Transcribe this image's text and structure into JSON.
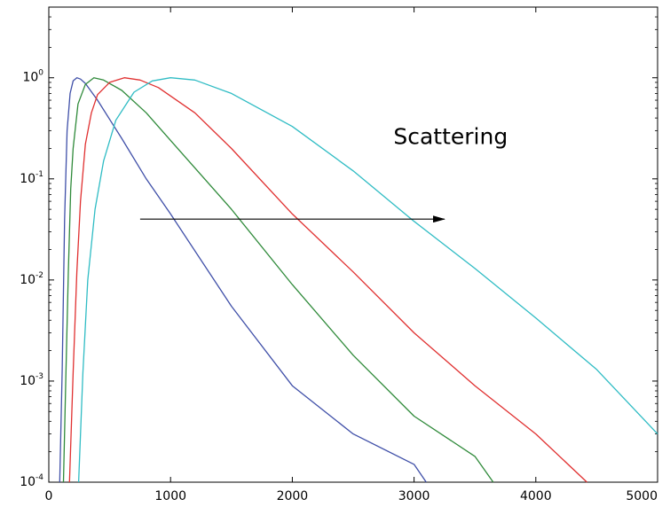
{
  "chart_data": {
    "type": "line",
    "title": "",
    "xlabel": "",
    "ylabel": "",
    "xlim": [
      0,
      5000
    ],
    "ylim": [
      0.0001,
      5
    ],
    "y_scale": "log",
    "grid": false,
    "x_ticks": [
      0,
      1000,
      2000,
      3000,
      4000,
      5000
    ],
    "x_tick_labels": [
      "0",
      "1000",
      "2000",
      "3000",
      "4000",
      "5000"
    ],
    "y_ticks": [
      0.0001,
      0.001,
      0.01,
      0.1,
      1
    ],
    "y_tick_labels": [
      {
        "base": "10",
        "exp": "-4"
      },
      {
        "base": "10",
        "exp": "-3"
      },
      {
        "base": "10",
        "exp": "-2"
      },
      {
        "base": "10",
        "exp": "-1"
      },
      {
        "base": "10",
        "exp": "0"
      }
    ],
    "series": [
      {
        "color": "#3f4fa8",
        "x": [
          90,
          110,
          130,
          150,
          175,
          200,
          230,
          260,
          300,
          400,
          600,
          800,
          1000,
          1500,
          2000,
          2500,
          3000,
          3100
        ],
        "y": [
          0.0001,
          0.0013,
          0.04,
          0.3,
          0.7,
          0.93,
          1.0,
          0.97,
          0.88,
          0.6,
          0.25,
          0.1,
          0.045,
          0.0055,
          0.0009,
          0.0003,
          0.00015,
          0.0001
        ]
      },
      {
        "color": "#2f8a3a",
        "x": [
          120,
          140,
          160,
          180,
          200,
          240,
          300,
          370,
          450,
          600,
          800,
          1000,
          1500,
          2000,
          2500,
          3000,
          3500,
          3650
        ],
        "y": [
          0.0001,
          0.0011,
          0.012,
          0.08,
          0.2,
          0.55,
          0.86,
          1.0,
          0.95,
          0.75,
          0.45,
          0.24,
          0.05,
          0.009,
          0.0018,
          0.00045,
          0.00018,
          0.0001
        ]
      },
      {
        "color": "#e03030",
        "x": [
          170,
          200,
          230,
          260,
          300,
          350,
          400,
          500,
          620,
          750,
          900,
          1200,
          1500,
          2000,
          2500,
          3000,
          3500,
          4000,
          4420
        ],
        "y": [
          0.0001,
          0.0012,
          0.012,
          0.06,
          0.22,
          0.45,
          0.68,
          0.9,
          1.0,
          0.95,
          0.8,
          0.45,
          0.2,
          0.045,
          0.012,
          0.003,
          0.0009,
          0.0003,
          0.0001
        ]
      },
      {
        "color": "#2fbcc4",
        "x": [
          245,
          280,
          320,
          380,
          450,
          550,
          700,
          850,
          1000,
          1200,
          1500,
          2000,
          2500,
          3000,
          3500,
          4000,
          4500,
          5000
        ],
        "y": [
          0.0001,
          0.0012,
          0.01,
          0.05,
          0.15,
          0.38,
          0.72,
          0.93,
          1.0,
          0.95,
          0.7,
          0.33,
          0.12,
          0.038,
          0.013,
          0.0042,
          0.0013,
          0.0003
        ]
      }
    ],
    "annotations": [
      {
        "text": "Scattering",
        "x": 3300,
        "y": 0.22
      },
      {
        "type": "arrow",
        "from": [
          750,
          0.04
        ],
        "to": [
          3250,
          0.04
        ]
      }
    ]
  }
}
